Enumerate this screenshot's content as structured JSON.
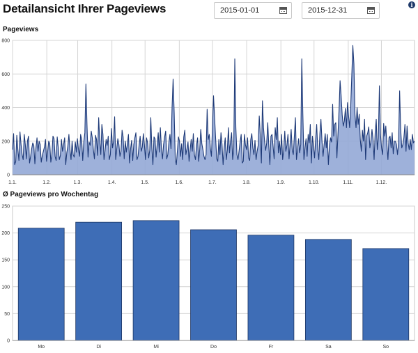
{
  "header": {
    "title": "Detailansicht Ihrer Pageviews",
    "date_from": "2015-01-01",
    "date_to": "2015-12-31",
    "info_icon": "info-icon"
  },
  "colors": {
    "line": "#1e3a78",
    "area_fill": "#94a9d6",
    "bar_fill": "#3e6db6",
    "bar_stroke": "#1c3563",
    "grid": "#d4d4d4"
  },
  "chart_data": [
    {
      "type": "area",
      "title": "Pageviews",
      "xlabel": "",
      "ylabel": "",
      "ylim": [
        0,
        800
      ],
      "y_ticks": [
        0,
        200,
        400,
        600,
        800
      ],
      "x_tick_labels": [
        "1.1.",
        "1.2.",
        "1.3.",
        "1.4.",
        "1.5.",
        "1.6.",
        "1.7.",
        "1.8.",
        "1.9.",
        "1.10.",
        "1.11.",
        "1.12."
      ],
      "x_tick_days": [
        0,
        31,
        59,
        90,
        120,
        151,
        181,
        212,
        243,
        273,
        304,
        334
      ],
      "x_range_days": [
        0,
        364
      ],
      "grid": true,
      "series": [
        {
          "values": [
            150,
            245,
            60,
            80,
            235,
            150,
            85,
            255,
            180,
            120,
            90,
            240,
            180,
            95,
            200,
            230,
            70,
            110,
            155,
            190,
            175,
            65,
            160,
            220,
            140,
            200,
            180,
            75,
            115,
            140,
            165,
            210,
            80,
            135,
            200,
            185,
            75,
            120,
            230,
            215,
            110,
            85,
            225,
            160,
            90,
            115,
            210,
            140,
            180,
            220,
            60,
            130,
            170,
            240,
            150,
            90,
            200,
            120,
            105,
            195,
            135,
            215,
            150,
            110,
            240,
            210,
            85,
            195,
            250,
            540,
            300,
            105,
            195,
            175,
            260,
            220,
            150,
            95,
            235,
            210,
            115,
            340,
            200,
            120,
            300,
            240,
            90,
            145,
            210,
            175,
            230,
            90,
            120,
            275,
            160,
            200,
            345,
            90,
            155,
            215,
            180,
            110,
            140,
            265,
            225,
            95,
            200,
            135,
            185,
            240,
            70,
            155,
            205,
            85,
            180,
            220,
            250,
            90,
            110,
            175,
            230,
            140,
            165,
            245,
            180,
            90,
            220,
            190,
            100,
            145,
            340,
            160,
            60,
            225,
            215,
            105,
            180,
            250,
            135,
            280,
            155,
            95,
            180,
            225,
            260,
            95,
            120,
            190,
            240,
            155,
            400,
            570,
            370,
            95,
            60,
            140,
            225,
            200,
            110,
            185,
            90,
            225,
            265,
            120,
            155,
            195,
            80,
            150,
            210,
            140,
            245,
            120,
            90,
            175,
            220,
            80,
            150,
            270,
            185,
            150,
            110,
            90,
            120,
            390,
            210,
            240,
            160,
            110,
            280,
            470,
            340,
            215,
            95,
            80,
            210,
            120,
            250,
            180,
            60,
            160,
            220,
            90,
            150,
            280,
            130,
            200,
            250,
            90,
            160,
            690,
            280,
            120,
            90,
            140,
            195,
            240,
            70,
            80,
            240,
            180,
            150,
            220,
            100,
            85,
            210,
            245,
            160,
            120,
            205,
            90,
            140,
            175,
            350,
            230,
            70,
            440,
            280,
            200,
            145,
            190,
            310,
            170,
            60,
            230,
            240,
            170,
            95,
            280,
            210,
            340,
            130,
            200,
            120,
            240,
            90,
            150,
            260,
            140,
            175,
            240,
            95,
            185,
            270,
            150,
            120,
            230,
            340,
            90,
            155,
            215,
            130,
            180,
            690,
            360,
            90,
            160,
            215,
            110,
            240,
            190,
            300,
            70,
            230,
            170,
            100,
            210,
            300,
            150,
            90,
            245,
            330,
            200,
            110,
            180,
            245,
            160,
            240,
            60,
            170,
            220,
            195,
            420,
            230,
            300,
            310,
            100,
            240,
            380,
            560,
            470,
            355,
            290,
            320,
            395,
            280,
            430,
            350,
            280,
            410,
            590,
            770,
            660,
            360,
            280,
            400,
            300,
            360,
            210,
            140,
            265,
            200,
            330,
            90,
            230,
            250,
            285,
            160,
            200,
            270,
            210,
            90,
            250,
            330,
            150,
            220,
            530,
            240,
            160,
            120,
            305,
            230,
            290,
            180,
            90,
            220,
            230,
            160,
            250,
            125,
            200,
            200,
            180,
            120,
            190,
            500,
            270,
            160,
            180,
            220,
            300,
            140,
            290,
            190,
            150,
            210,
            150,
            240,
            190,
            200
          ]
        }
      ]
    },
    {
      "type": "bar",
      "title": "Ø Pageviews pro Wochentag",
      "xlabel": "",
      "ylabel": "",
      "categories": [
        "Mo",
        "Di",
        "Mi",
        "Do",
        "Fr",
        "Sa",
        "So"
      ],
      "values": [
        209,
        220,
        223,
        206,
        196,
        188,
        171
      ],
      "ylim": [
        0,
        250
      ],
      "y_ticks": [
        0,
        50,
        100,
        150,
        200,
        250
      ],
      "grid": true
    }
  ]
}
